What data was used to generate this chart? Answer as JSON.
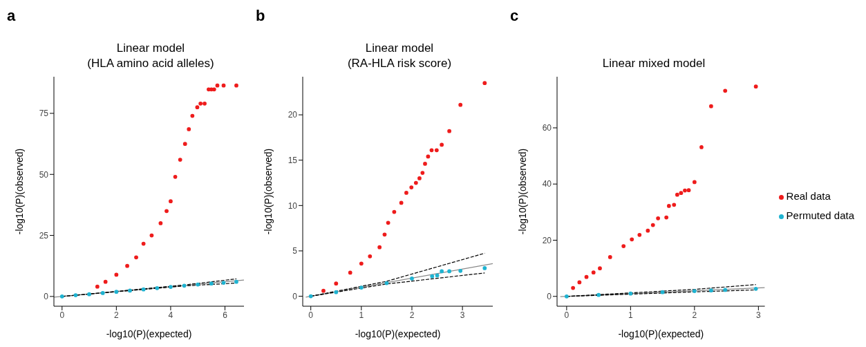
{
  "chart_data": [
    {
      "type": "scatter",
      "title": "Linear model\n(HLA amino acid alleles)",
      "xlabel": "-log10(P)(expected)",
      "ylabel": "-log10(P)(observed)",
      "annotations": [
        "a"
      ],
      "xlim": [
        -0.3,
        6.7
      ],
      "ylim": [
        -4,
        90
      ],
      "xticks": [
        0,
        2,
        4,
        6
      ],
      "yticks": [
        0,
        25,
        50,
        75
      ],
      "legend": false,
      "marker": "circle",
      "series": [
        {
          "type": "line",
          "color": "#888888",
          "line_style": "solid",
          "marker": "none",
          "x": [
            -0.3,
            6.7
          ],
          "values": [
            -0.3,
            6.7
          ]
        },
        {
          "type": "line",
          "color": "#000000",
          "line_style": "dashed",
          "marker": "none",
          "x": [
            0,
            4.5,
            6.42
          ],
          "values": [
            0,
            4.7,
            7.2
          ]
        },
        {
          "type": "line",
          "color": "#000000",
          "line_style": "dashed",
          "marker": "none",
          "x": [
            0,
            4.5,
            6.42
          ],
          "values": [
            0,
            4.3,
            5.5
          ]
        },
        {
          "color": "#1fb3d1",
          "x": [
            0,
            0.5,
            1,
            1.5,
            2,
            2.5,
            3,
            3.5,
            4,
            4.5,
            5,
            5.5,
            5.95,
            6.42
          ],
          "values": [
            0,
            0.5,
            0.9,
            1.4,
            1.9,
            2.4,
            2.9,
            3.4,
            3.9,
            4.4,
            4.9,
            5.3,
            5.6,
            6
          ]
        },
        {
          "color": "#ee1c1c",
          "x": [
            1.3,
            1.6,
            2,
            2.4,
            2.73,
            3,
            3.3,
            3.63,
            3.85,
            4,
            4.17,
            4.35,
            4.53,
            4.67,
            4.8,
            4.98,
            5.1,
            5.25,
            5.4,
            5.5,
            5.6,
            5.72,
            5.95,
            6.42
          ],
          "values": [
            4,
            6,
            8.9,
            12.5,
            16,
            21.6,
            25,
            30,
            35,
            39,
            49,
            56,
            62.5,
            68.5,
            74,
            77.5,
            79,
            79,
            84.8,
            84.8,
            84.8,
            86.4,
            86.4,
            86.4
          ]
        }
      ]
    },
    {
      "type": "scatter",
      "title": "Linear model\n(RA-HLA risk score)",
      "xlabel": "-log10(P)(expected)",
      "ylabel": "-log10(P)(observed)",
      "annotations": [
        "b"
      ],
      "xlim": [
        -0.16,
        3.6
      ],
      "ylim": [
        -1.1,
        24.2
      ],
      "xticks": [
        0,
        1,
        2,
        3
      ],
      "yticks": [
        0,
        5,
        10,
        15,
        20
      ],
      "legend": false,
      "marker": "circle",
      "series": [
        {
          "type": "line",
          "color": "#888888",
          "line_style": "solid",
          "marker": "none",
          "x": [
            -0.1,
            3.6
          ],
          "values": [
            -0.1,
            3.6
          ]
        },
        {
          "type": "line",
          "color": "#000000",
          "line_style": "dashed",
          "marker": "none",
          "x": [
            0,
            1.5,
            3.44
          ],
          "values": [
            0,
            1.65,
            4.74
          ]
        },
        {
          "type": "line",
          "color": "#000000",
          "line_style": "dashed",
          "marker": "none",
          "x": [
            0,
            1.5,
            3.44
          ],
          "values": [
            0,
            1.35,
            2.57
          ]
        },
        {
          "color": "#1fb3d1",
          "x": [
            0,
            0.5,
            1,
            1.5,
            2,
            2.4,
            2.5,
            2.59,
            2.74,
            2.96,
            3.44
          ],
          "values": [
            0,
            0.45,
            0.95,
            1.45,
            1.95,
            2.2,
            2.3,
            2.75,
            2.75,
            2.8,
            3.1
          ]
        },
        {
          "color": "#ee1c1c",
          "x": [
            0.25,
            0.5,
            0.78,
            1,
            1.17,
            1.36,
            1.46,
            1.53,
            1.65,
            1.79,
            1.89,
            1.99,
            2.08,
            2.15,
            2.21,
            2.26,
            2.32,
            2.39,
            2.49,
            2.59,
            2.74,
            2.96,
            3.44
          ],
          "values": [
            0.6,
            1.4,
            2.6,
            3.6,
            4.4,
            5.4,
            6.8,
            8.1,
            9.3,
            10.3,
            11.4,
            12,
            12.5,
            13,
            13.6,
            14.6,
            15.4,
            16.1,
            16.1,
            16.7,
            18.2,
            21.1,
            23.5
          ]
        }
      ]
    },
    {
      "type": "scatter",
      "title": "Linear mixed model",
      "xlabel": "-log10(P)(expected)",
      "ylabel": "-log10(P)(observed)",
      "annotations": [
        "c"
      ],
      "xlim": [
        -0.15,
        3.1
      ],
      "ylim": [
        -3.5,
        78.2
      ],
      "xticks": [
        0,
        1,
        2,
        3
      ],
      "yticks": [
        0,
        20,
        40,
        60
      ],
      "legend": "right",
      "marker": "circle",
      "series": [
        {
          "type": "line",
          "color": "#888888",
          "line_style": "solid",
          "marker": "none",
          "x": [
            -0.1,
            3.1
          ],
          "values": [
            -0.1,
            3.1
          ]
        },
        {
          "type": "line",
          "color": "#000000",
          "line_style": "dashed",
          "marker": "none",
          "x": [
            0,
            2,
            2.96
          ],
          "values": [
            0,
            2.5,
            4.2
          ]
        },
        {
          "type": "line",
          "color": "#000000",
          "line_style": "dashed",
          "marker": "none",
          "x": [
            0,
            2,
            2.96
          ],
          "values": [
            0,
            1.6,
            2.3
          ]
        },
        {
          "name": "Real data",
          "color": "#ee1c1c",
          "x": [
            0.1,
            0.2,
            0.31,
            0.42,
            0.52,
            0.68,
            0.89,
            1.02,
            1.14,
            1.27,
            1.35,
            1.43,
            1.56,
            1.6,
            1.68,
            1.73,
            1.79,
            1.85,
            1.91,
            2,
            2.11,
            2.26,
            2.48,
            2.96
          ],
          "values": [
            3,
            5,
            6.9,
            8.5,
            10,
            14,
            17.9,
            20.3,
            21.9,
            23.4,
            25.4,
            27.8,
            28.1,
            32.2,
            32.6,
            36.2,
            36.8,
            37.7,
            37.8,
            40.7,
            53.1,
            67.7,
            73.2,
            74.7
          ]
        },
        {
          "name": "Permuted data",
          "color": "#1fb3d1",
          "x": [
            0,
            0.5,
            1,
            1.5,
            2,
            2.26,
            2.48,
            2.96
          ],
          "values": [
            0,
            0.5,
            1,
            1.5,
            1.9,
            2.1,
            2.3,
            2.7
          ]
        }
      ]
    }
  ]
}
